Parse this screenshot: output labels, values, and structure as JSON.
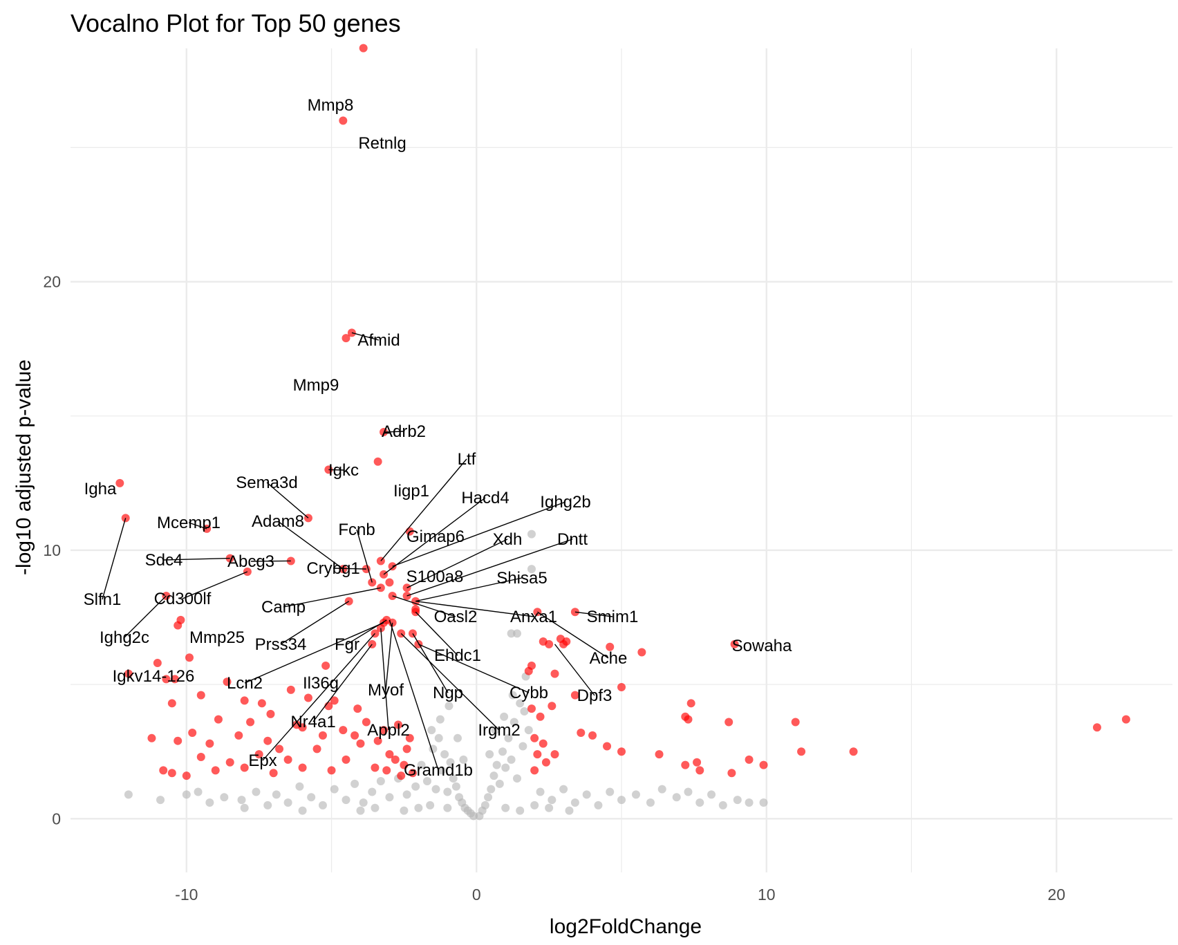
{
  "chart_data": {
    "type": "scatter",
    "title": "Vocalno Plot for Top 50 genes",
    "xlabel": "log2FoldChange",
    "ylabel": "-log10 adjusted p-value",
    "xlim": [
      -14,
      24
    ],
    "ylim": [
      -2,
      29
    ],
    "x_ticks": [
      -10,
      0,
      10,
      20
    ],
    "y_ticks": [
      0,
      10,
      20
    ],
    "x_tick_labels": [
      "-10",
      "0",
      "10",
      "20"
    ],
    "y_tick_labels": [
      "0",
      "10",
      "20"
    ],
    "grid": true,
    "colors": {
      "significant": "#FF0000",
      "not_significant": "#B3B3B3",
      "grid": "#EBEBEB"
    },
    "series": [
      {
        "role": "significant",
        "color": "#FF0000",
        "points": [
          [
            -3.9,
            28.7
          ],
          [
            -4.6,
            26.0
          ],
          [
            -4.3,
            18.1
          ],
          [
            -4.5,
            17.9
          ],
          [
            -3.2,
            14.4
          ],
          [
            -5.1,
            13.0
          ],
          [
            -3.4,
            13.3
          ],
          [
            -12.3,
            12.5
          ],
          [
            -12.1,
            11.2
          ],
          [
            -9.3,
            10.8
          ],
          [
            -5.8,
            11.2
          ],
          [
            -2.3,
            10.7
          ],
          [
            -8.5,
            9.7
          ],
          [
            -6.4,
            9.6
          ],
          [
            -4.6,
            9.3
          ],
          [
            -7.9,
            9.2
          ],
          [
            -3.8,
            9.3
          ],
          [
            -3.3,
            9.6
          ],
          [
            -3.2,
            9.1
          ],
          [
            -2.9,
            9.4
          ],
          [
            -3.6,
            8.8
          ],
          [
            -3.0,
            8.8
          ],
          [
            -2.4,
            8.6
          ],
          [
            -3.3,
            8.6
          ],
          [
            -2.9,
            8.3
          ],
          [
            -2.4,
            8.3
          ],
          [
            -2.1,
            8.1
          ],
          [
            -4.4,
            8.1
          ],
          [
            -2.1,
            7.7
          ],
          [
            -10.7,
            8.3
          ],
          [
            -10.2,
            7.4
          ],
          [
            -10.3,
            7.2
          ],
          [
            -3.1,
            7.4
          ],
          [
            -3.2,
            7.3
          ],
          [
            -2.9,
            7.3
          ],
          [
            -3.3,
            7.1
          ],
          [
            -2.6,
            6.9
          ],
          [
            -2.2,
            6.9
          ],
          [
            -2.0,
            6.5
          ],
          [
            -3.5,
            6.9
          ],
          [
            -3.6,
            6.5
          ],
          [
            -9.9,
            6.0
          ],
          [
            -11.0,
            5.8
          ],
          [
            -12.0,
            5.4
          ],
          [
            -10.4,
            5.2
          ],
          [
            -10.7,
            5.2
          ],
          [
            -5.2,
            5.7
          ],
          [
            -6.4,
            4.8
          ],
          [
            -4.9,
            4.4
          ],
          [
            -5.1,
            4.2
          ],
          [
            -8.6,
            5.1
          ],
          [
            -9.5,
            4.6
          ],
          [
            -8.0,
            4.4
          ],
          [
            -10.5,
            4.3
          ],
          [
            -7.4,
            4.3
          ],
          [
            -6.0,
            3.4
          ],
          [
            -6.8,
            2.6
          ],
          [
            -11.2,
            3.0
          ],
          [
            -9.8,
            3.2
          ],
          [
            -8.9,
            3.7
          ],
          [
            -7.8,
            3.6
          ],
          [
            -2.1,
            7.8
          ],
          [
            2.1,
            7.7
          ],
          [
            3.4,
            7.7
          ],
          [
            4.6,
            6.4
          ],
          [
            5.7,
            6.2
          ],
          [
            8.9,
            6.5
          ],
          [
            3.1,
            6.6
          ],
          [
            3.0,
            6.5
          ],
          [
            2.5,
            6.5
          ],
          [
            2.9,
            6.7
          ],
          [
            2.3,
            6.6
          ],
          [
            2.7,
            5.4
          ],
          [
            1.9,
            5.7
          ],
          [
            1.8,
            5.5
          ],
          [
            3.4,
            4.6
          ],
          [
            5.0,
            4.9
          ],
          [
            7.4,
            4.3
          ],
          [
            7.2,
            3.8
          ],
          [
            7.3,
            3.7
          ],
          [
            8.7,
            3.6
          ],
          [
            11.0,
            3.6
          ],
          [
            11.2,
            2.5
          ],
          [
            13.0,
            2.5
          ],
          [
            21.4,
            3.4
          ],
          [
            22.4,
            3.7
          ],
          [
            3.6,
            3.2
          ],
          [
            4.0,
            3.1
          ],
          [
            4.5,
            2.7
          ],
          [
            5.0,
            2.5
          ],
          [
            6.3,
            2.4
          ],
          [
            7.2,
            2.0
          ],
          [
            7.6,
            2.1
          ],
          [
            7.7,
            1.8
          ],
          [
            8.8,
            1.7
          ],
          [
            9.4,
            2.2
          ],
          [
            9.9,
            2.0
          ],
          [
            2.0,
            3.0
          ],
          [
            2.3,
            2.8
          ],
          [
            2.7,
            2.4
          ],
          [
            -2.5,
            2.0
          ],
          [
            -3.0,
            2.4
          ],
          [
            -3.5,
            1.9
          ],
          [
            -4.0,
            2.8
          ],
          [
            -4.5,
            2.2
          ],
          [
            -5.0,
            1.8
          ],
          [
            -5.5,
            2.6
          ],
          [
            -6.0,
            1.9
          ],
          [
            -6.5,
            2.2
          ],
          [
            -7.0,
            1.7
          ],
          [
            -7.5,
            2.4
          ],
          [
            -8.0,
            1.9
          ],
          [
            -8.5,
            2.1
          ],
          [
            -9.0,
            1.8
          ],
          [
            -9.5,
            2.3
          ],
          [
            -10.0,
            1.6
          ],
          [
            -10.5,
            1.7
          ],
          [
            -10.8,
            1.8
          ],
          [
            -3.2,
            3.3
          ],
          [
            -3.8,
            3.6
          ],
          [
            -4.2,
            3.1
          ],
          [
            -2.7,
            3.5
          ],
          [
            -2.3,
            3.0
          ],
          [
            -2.8,
            2.2
          ],
          [
            -3.1,
            1.8
          ],
          [
            -2.6,
            1.6
          ],
          [
            -2.2,
            1.7
          ],
          [
            -2.4,
            2.6
          ],
          [
            -3.4,
            2.9
          ],
          [
            -4.6,
            3.3
          ],
          [
            -5.3,
            3.1
          ],
          [
            -6.2,
            3.5
          ],
          [
            -7.2,
            2.9
          ],
          [
            -8.2,
            3.1
          ],
          [
            -9.2,
            2.8
          ],
          [
            -10.3,
            2.9
          ],
          [
            -4.1,
            4.1
          ],
          [
            -5.8,
            4.5
          ],
          [
            -7.1,
            3.9
          ],
          [
            2.2,
            3.8
          ],
          [
            2.6,
            4.2
          ],
          [
            1.9,
            4.1
          ],
          [
            2.1,
            2.4
          ],
          [
            2.4,
            2.1
          ],
          [
            2.0,
            1.8
          ]
        ]
      },
      {
        "role": "not_significant",
        "color": "#B3B3B3",
        "points": [
          [
            -12.0,
            0.9
          ],
          [
            -10.9,
            0.7
          ],
          [
            -10.0,
            0.9
          ],
          [
            -9.6,
            1.0
          ],
          [
            -9.2,
            0.6
          ],
          [
            -8.7,
            0.8
          ],
          [
            -8.1,
            0.7
          ],
          [
            -7.6,
            1.0
          ],
          [
            -7.2,
            0.5
          ],
          [
            -6.9,
            0.9
          ],
          [
            -6.5,
            0.6
          ],
          [
            -6.1,
            1.2
          ],
          [
            -5.7,
            0.8
          ],
          [
            -5.3,
            0.5
          ],
          [
            -4.9,
            1.1
          ],
          [
            -4.5,
            0.7
          ],
          [
            -4.2,
            1.3
          ],
          [
            -3.9,
            0.6
          ],
          [
            -3.6,
            1.0
          ],
          [
            -3.3,
            1.4
          ],
          [
            -3.0,
            0.8
          ],
          [
            -2.7,
            1.5
          ],
          [
            -2.4,
            0.9
          ],
          [
            -2.1,
            1.2
          ],
          [
            -1.9,
            2.0
          ],
          [
            -1.7,
            1.4
          ],
          [
            -1.5,
            2.6
          ],
          [
            -1.4,
            1.1
          ],
          [
            -1.3,
            3.0
          ],
          [
            -1.2,
            1.8
          ],
          [
            -1.1,
            2.4
          ],
          [
            -1.0,
            1.0
          ],
          [
            -0.9,
            2.1
          ],
          [
            -0.8,
            1.5
          ],
          [
            -0.7,
            1.2
          ],
          [
            -0.6,
            0.8
          ],
          [
            -0.5,
            0.6
          ],
          [
            -0.4,
            0.4
          ],
          [
            -0.3,
            0.3
          ],
          [
            -0.2,
            0.2
          ],
          [
            -0.1,
            0.1
          ],
          [
            0.1,
            0.1
          ],
          [
            0.2,
            0.3
          ],
          [
            0.3,
            0.5
          ],
          [
            0.4,
            0.8
          ],
          [
            0.5,
            1.1
          ],
          [
            0.6,
            1.6
          ],
          [
            0.7,
            2.0
          ],
          [
            0.8,
            1.3
          ],
          [
            0.9,
            2.5
          ],
          [
            1.0,
            1.9
          ],
          [
            1.1,
            3.0
          ],
          [
            1.2,
            2.2
          ],
          [
            1.3,
            3.6
          ],
          [
            1.4,
            1.5
          ],
          [
            1.5,
            4.3
          ],
          [
            1.6,
            2.7
          ],
          [
            1.7,
            5.3
          ],
          [
            1.8,
            3.3
          ],
          [
            1.9,
            10.6
          ],
          [
            1.9,
            9.3
          ],
          [
            1.2,
            6.9
          ],
          [
            1.4,
            6.9
          ],
          [
            2.2,
            1.0
          ],
          [
            2.6,
            0.7
          ],
          [
            3.0,
            1.1
          ],
          [
            3.4,
            0.6
          ],
          [
            3.8,
            0.9
          ],
          [
            4.2,
            0.5
          ],
          [
            4.6,
            1.0
          ],
          [
            5.0,
            0.7
          ],
          [
            5.5,
            0.9
          ],
          [
            6.0,
            0.6
          ],
          [
            6.4,
            1.1
          ],
          [
            6.9,
            0.8
          ],
          [
            7.3,
            1.0
          ],
          [
            7.7,
            0.6
          ],
          [
            8.1,
            0.9
          ],
          [
            8.5,
            0.5
          ],
          [
            9.0,
            0.7
          ],
          [
            9.4,
            0.6
          ],
          [
            9.9,
            0.6
          ],
          [
            -2.0,
            0.4
          ],
          [
            -2.5,
            0.3
          ],
          [
            -3.5,
            0.4
          ],
          [
            -4.0,
            0.3
          ],
          [
            -1.6,
            0.5
          ],
          [
            -1.0,
            0.4
          ],
          [
            1.0,
            0.4
          ],
          [
            1.5,
            0.3
          ],
          [
            2.0,
            0.5
          ],
          [
            2.5,
            0.4
          ],
          [
            3.2,
            0.3
          ],
          [
            -6.0,
            0.3
          ],
          [
            -8.0,
            0.4
          ],
          [
            -0.95,
            4.2
          ],
          [
            -1.25,
            3.7
          ],
          [
            -1.55,
            3.3
          ],
          [
            0.95,
            3.8
          ],
          [
            1.25,
            4.6
          ],
          [
            1.65,
            4.0
          ],
          [
            -0.45,
            2.2
          ],
          [
            0.45,
            2.4
          ],
          [
            -0.65,
            3.0
          ],
          [
            0.65,
            3.3
          ]
        ]
      }
    ],
    "labels": [
      {
        "gene": "Mmp8",
        "x": -3.9,
        "y": 28.7
      },
      {
        "gene": "Retnlg",
        "x": -4.6,
        "y": 26.0
      },
      {
        "gene": "Afmid",
        "x": -4.3,
        "y": 18.1
      },
      {
        "gene": "Mmp9",
        "x": -4.5,
        "y": 17.9
      },
      {
        "gene": "Adrb2",
        "x": -3.2,
        "y": 14.4
      },
      {
        "gene": "Igkc",
        "x": -5.1,
        "y": 13.0
      },
      {
        "gene": "Ltf",
        "x": -3.3,
        "y": 9.6
      },
      {
        "gene": "Iigp1",
        "x": -3.4,
        "y": 13.3
      },
      {
        "gene": "Hacd4",
        "x": -3.2,
        "y": 9.1
      },
      {
        "gene": "Igha",
        "x": -12.3,
        "y": 12.5
      },
      {
        "gene": "Sema3d",
        "x": -5.8,
        "y": 11.2
      },
      {
        "gene": "Ighg2b",
        "x": -2.9,
        "y": 9.4
      },
      {
        "gene": "Mcemp1",
        "x": -9.3,
        "y": 10.8
      },
      {
        "gene": "Adam8",
        "x": -4.6,
        "y": 9.3
      },
      {
        "gene": "Fcnb",
        "x": -3.6,
        "y": 8.8
      },
      {
        "gene": "Gimap6",
        "x": -2.3,
        "y": 10.7
      },
      {
        "gene": "Xdh",
        "x": -2.4,
        "y": 8.6
      },
      {
        "gene": "Dntt",
        "x": -2.4,
        "y": 8.3
      },
      {
        "gene": "Sdc4",
        "x": -8.5,
        "y": 9.7
      },
      {
        "gene": "Abcg3",
        "x": -6.4,
        "y": 9.6
      },
      {
        "gene": "Crybg1",
        "x": -3.8,
        "y": 9.3
      },
      {
        "gene": "S100a8",
        "x": -3.0,
        "y": 8.8
      },
      {
        "gene": "Shisa5",
        "x": -2.1,
        "y": 8.1
      },
      {
        "gene": "Slfn1",
        "x": -12.1,
        "y": 11.2
      },
      {
        "gene": "Cd300lf",
        "x": -7.9,
        "y": 9.2
      },
      {
        "gene": "Camp",
        "x": -3.3,
        "y": 8.6
      },
      {
        "gene": "Oasl2",
        "x": -2.9,
        "y": 8.3
      },
      {
        "gene": "Anxa1",
        "x": -2.1,
        "y": 8.1
      },
      {
        "gene": "Smim1",
        "x": 3.4,
        "y": 7.7
      },
      {
        "gene": "Ighg2c",
        "x": -10.7,
        "y": 8.3
      },
      {
        "gene": "Mmp25",
        "x": -10.2,
        "y": 7.4
      },
      {
        "gene": "Prss34",
        "x": -4.4,
        "y": 8.1
      },
      {
        "gene": "Fgr",
        "x": -3.1,
        "y": 7.4
      },
      {
        "gene": "Ehdc1",
        "x": -2.1,
        "y": 7.7
      },
      {
        "gene": "Sowaha",
        "x": 8.9,
        "y": 6.5
      },
      {
        "gene": "Ache",
        "x": 2.1,
        "y": 7.7
      },
      {
        "gene": "Igkv14-126",
        "x": -10.3,
        "y": 7.2
      },
      {
        "gene": "Lcn2",
        "x": -3.2,
        "y": 7.3
      },
      {
        "gene": "Il36g",
        "x": -5.2,
        "y": 5.7
      },
      {
        "gene": "Myof",
        "x": -2.9,
        "y": 7.3
      },
      {
        "gene": "Ngp",
        "x": -2.2,
        "y": 6.9
      },
      {
        "gene": "Cybb",
        "x": -2.0,
        "y": 6.5
      },
      {
        "gene": "Dpf3",
        "x": 2.7,
        "y": 6.5
      },
      {
        "gene": "Nr4a1",
        "x": -3.6,
        "y": 6.5
      },
      {
        "gene": "Appl2",
        "x": -3.3,
        "y": 7.1
      },
      {
        "gene": "Irgm2",
        "x": -2.6,
        "y": 6.9
      },
      {
        "gene": "Epx",
        "x": -3.5,
        "y": 6.9
      },
      {
        "gene": "Gramd1b",
        "x": -3.0,
        "y": 7.4
      }
    ]
  }
}
